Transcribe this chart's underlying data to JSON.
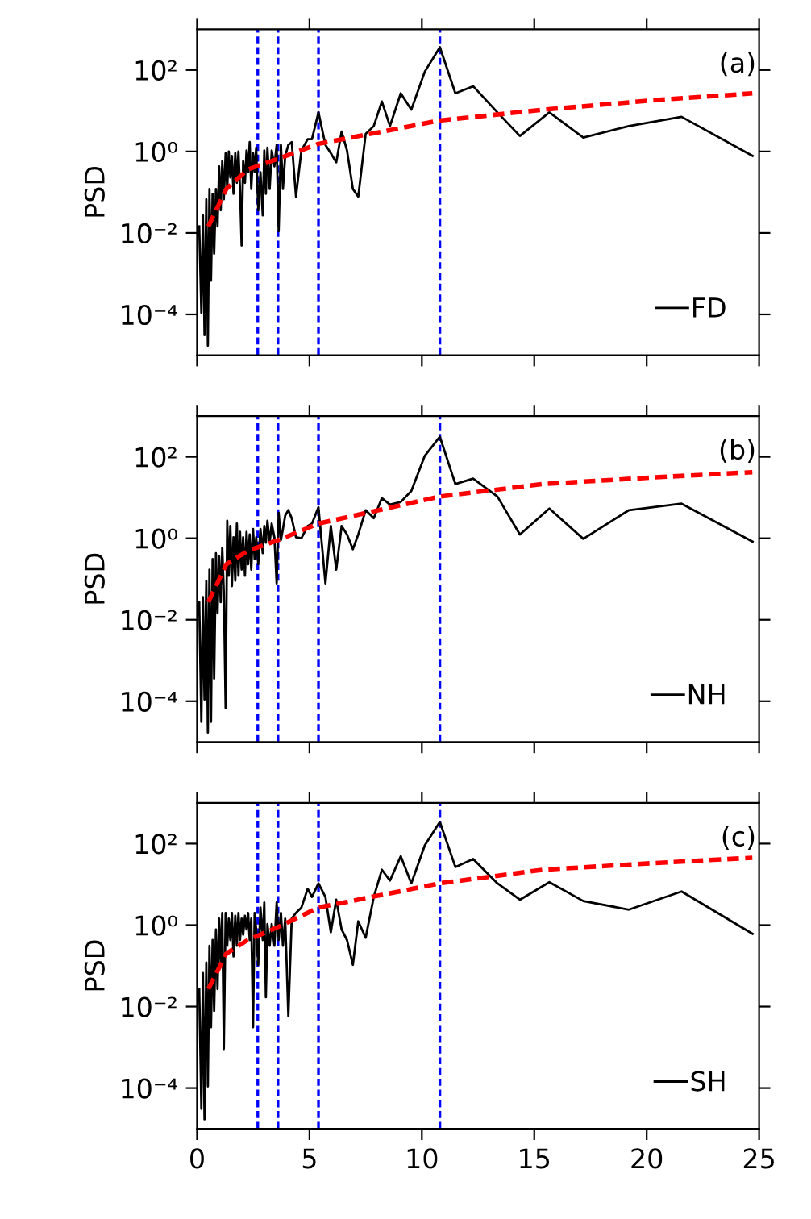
{
  "chart_data": [
    {
      "type": "line",
      "ylabel": "PSD",
      "annotations": [
        "(a)"
      ],
      "log": "y",
      "legend": "lower right",
      "grid": false,
      "tick_labels": "y",
      "marker": "none",
      "xlim": [
        0,
        25
      ],
      "xticks": [
        0,
        5,
        10,
        15,
        20,
        25
      ],
      "ylim": [
        1e-05,
        1000
      ],
      "yticks": [
        {
          "value": 0.0001,
          "label": "10⁻⁴"
        },
        {
          "value": 0.01,
          "label": "10⁻²"
        },
        {
          "value": 1,
          "label": "10⁰"
        },
        {
          "value": 100,
          "label": "10²"
        }
      ],
      "x": [
        0.096,
        0.19,
        0.26,
        0.33,
        0.41,
        0.48,
        0.55,
        0.62,
        0.69,
        0.76,
        0.84,
        0.91,
        0.98,
        1.05,
        1.12,
        1.19,
        1.27,
        1.34,
        1.41,
        1.48,
        1.55,
        1.62,
        1.7,
        1.77,
        1.84,
        1.91,
        1.98,
        2.05,
        2.13,
        2.2,
        2.27,
        2.34,
        2.41,
        2.49,
        2.56,
        2.63,
        2.72,
        2.82,
        2.92,
        2.99,
        3.06,
        3.13,
        3.23,
        3.32,
        3.44,
        3.54,
        3.63,
        3.73,
        3.82,
        3.92,
        4.06,
        4.21,
        4.4,
        4.64,
        4.92,
        5.11,
        5.4,
        5.71,
        5.95,
        6.19,
        6.43,
        6.67,
        6.93,
        7.17,
        7.5,
        7.86,
        8.22,
        8.58,
        9.06,
        9.53,
        10.13,
        10.8,
        11.49,
        12.28,
        13.36,
        14.36,
        15.67,
        17.18,
        19.21,
        21.55,
        24.71
      ],
      "series": [
        {
          "name": "FD",
          "color": "#000000",
          "line_style": "solid",
          "values": [
            0.0145,
            0.00011,
            0.027,
            3.1e-05,
            0.067,
            1.7e-05,
            0.12,
            0.00067,
            0.091,
            0.0031,
            0.12,
            0.0145,
            0.43,
            0.036,
            0.58,
            0.067,
            0.91,
            0.12,
            1.0,
            0.23,
            0.78,
            0.091,
            0.91,
            0.17,
            1.0,
            0.12,
            0.0049,
            0.58,
            0.17,
            1.06,
            0.31,
            1.7,
            0.12,
            0.91,
            0.31,
            1.24,
            0.036,
            0.31,
            0.027,
            1.06,
            0.091,
            1.24,
            0.12,
            1.06,
            0.43,
            1.45,
            0.011,
            1.45,
            0.12,
            0.78,
            1.45,
            1.7,
            0.078,
            1.06,
            2.0,
            2.0,
            9.1,
            1.45,
            0.91,
            0.54,
            3.1,
            1.06,
            0.12,
            0.078,
            2.7,
            4.2,
            16.9,
            4.2,
            26.7,
            10.6,
            91,
            363,
            26.7,
            40,
            9.1,
            2.4,
            9.1,
            2.2,
            4.2,
            7.1,
            0.78
          ]
        },
        {
          "color": "#ff0000",
          "line_style": "dashed",
          "x": [
            0.5,
            1.3,
            2.25,
            3.63,
            5.4,
            10.8,
            15.4,
            20.2,
            24.7
          ],
          "values": [
            0.0145,
            0.12,
            0.36,
            0.67,
            1.54,
            5.75,
            10.6,
            17.9,
            26.7
          ]
        }
      ],
      "ref_lines": [
        {
          "axis": "x",
          "value": 2.7,
          "color": "#0000ff",
          "line_style": "dashed"
        },
        {
          "axis": "x",
          "value": 3.6,
          "color": "#0000ff",
          "line_style": "dashed"
        },
        {
          "axis": "x",
          "value": 5.4,
          "color": "#0000ff",
          "line_style": "dashed"
        },
        {
          "axis": "x",
          "value": 10.8,
          "color": "#0000ff",
          "line_style": "dashed"
        }
      ]
    },
    {
      "type": "line",
      "ylabel": "PSD",
      "annotations": [
        "(b)"
      ],
      "log": "y",
      "legend": "lower right",
      "grid": false,
      "tick_labels": "y",
      "marker": "none",
      "xlim": [
        0,
        25
      ],
      "xticks": [
        0,
        5,
        10,
        15,
        20,
        25
      ],
      "ylim": [
        1e-05,
        1000
      ],
      "yticks": [
        {
          "value": 0.0001,
          "label": "10⁻⁴"
        },
        {
          "value": 0.01,
          "label": "10⁻²"
        },
        {
          "value": 1,
          "label": "10⁰"
        },
        {
          "value": 100,
          "label": "10²"
        }
      ],
      "x": [
        0.096,
        0.19,
        0.26,
        0.33,
        0.41,
        0.48,
        0.55,
        0.62,
        0.69,
        0.76,
        0.84,
        0.91,
        0.98,
        1.05,
        1.12,
        1.19,
        1.27,
        1.34,
        1.41,
        1.48,
        1.55,
        1.62,
        1.7,
        1.77,
        1.84,
        1.91,
        1.98,
        2.05,
        2.13,
        2.2,
        2.27,
        2.34,
        2.41,
        2.49,
        2.56,
        2.63,
        2.72,
        2.82,
        2.92,
        2.99,
        3.06,
        3.13,
        3.23,
        3.32,
        3.44,
        3.54,
        3.63,
        3.73,
        3.82,
        3.92,
        4.06,
        4.21,
        4.4,
        4.64,
        4.92,
        5.11,
        5.4,
        5.71,
        5.95,
        6.19,
        6.43,
        6.67,
        6.93,
        7.17,
        7.5,
        7.86,
        8.22,
        8.58,
        9.06,
        9.53,
        10.13,
        10.8,
        11.49,
        12.28,
        13.36,
        14.36,
        15.67,
        17.18,
        19.21,
        21.55,
        24.71
      ],
      "series": [
        {
          "name": "NH",
          "color": "#000000",
          "line_style": "solid",
          "values": [
            0.027,
            3.1e-05,
            0.036,
            0.00011,
            0.091,
            1.7e-05,
            0.17,
            3.1e-05,
            0.31,
            0.00036,
            0.43,
            0.0145,
            0.36,
            0.027,
            0.58,
            0.049,
            6.7e-05,
            2.7,
            0.12,
            2.0,
            0.067,
            1.06,
            0.091,
            2.3,
            0.12,
            1.45,
            0.17,
            1.06,
            0.12,
            1.45,
            0.23,
            1.24,
            0.17,
            1.7,
            0.31,
            1.06,
            0.23,
            1.7,
            0.43,
            2.0,
            0.78,
            2.7,
            0.78,
            2.3,
            1.06,
            0.078,
            4.2,
            0.91,
            1.7,
            3.6,
            4.9,
            3.1,
            1.06,
            1.0,
            2.0,
            2.3,
            5.8,
            0.078,
            2.0,
            0.17,
            2.0,
            1.24,
            0.54,
            1.24,
            4.9,
            3.1,
            9.7,
            6.7,
            7.8,
            14.5,
            106,
            311,
            21.5,
            29.3,
            10.6,
            1.24,
            5.4,
            0.97,
            4.9,
            7.1,
            0.83
          ]
        },
        {
          "color": "#ff0000",
          "line_style": "dashed",
          "x": [
            0.5,
            1.3,
            2.25,
            3.63,
            5.4,
            10.8,
            15.4,
            20.2,
            24.7
          ],
          "values": [
            0.027,
            0.23,
            0.49,
            0.91,
            2.3,
            10.6,
            21.5,
            31,
            42
          ]
        }
      ],
      "ref_lines": [
        {
          "axis": "x",
          "value": 2.7,
          "color": "#0000ff",
          "line_style": "dashed"
        },
        {
          "axis": "x",
          "value": 3.6,
          "color": "#0000ff",
          "line_style": "dashed"
        },
        {
          "axis": "x",
          "value": 5.4,
          "color": "#0000ff",
          "line_style": "dashed"
        },
        {
          "axis": "x",
          "value": 10.8,
          "color": "#0000ff",
          "line_style": "dashed"
        }
      ]
    },
    {
      "type": "line",
      "ylabel": "PSD",
      "annotations": [
        "(c)"
      ],
      "log": "y",
      "legend": "lower right",
      "grid": false,
      "marker": "none",
      "xlim": [
        0,
        25
      ],
      "xticks": [
        0,
        5,
        10,
        15,
        20,
        25
      ],
      "ylim": [
        1e-05,
        1000
      ],
      "yticks": [
        {
          "value": 0.0001,
          "label": "10⁻⁴"
        },
        {
          "value": 0.01,
          "label": "10⁻²"
        },
        {
          "value": 1,
          "label": "10⁰"
        },
        {
          "value": 100,
          "label": "10²"
        }
      ],
      "x": [
        0.096,
        0.19,
        0.26,
        0.33,
        0.41,
        0.48,
        0.55,
        0.62,
        0.69,
        0.76,
        0.84,
        0.91,
        0.98,
        1.05,
        1.12,
        1.19,
        1.27,
        1.34,
        1.41,
        1.48,
        1.55,
        1.62,
        1.7,
        1.77,
        1.84,
        1.91,
        1.98,
        2.05,
        2.13,
        2.2,
        2.27,
        2.34,
        2.41,
        2.49,
        2.56,
        2.63,
        2.72,
        2.82,
        2.92,
        2.99,
        3.06,
        3.13,
        3.23,
        3.32,
        3.44,
        3.54,
        3.63,
        3.73,
        3.82,
        3.92,
        4.06,
        4.21,
        4.4,
        4.64,
        4.92,
        5.11,
        5.4,
        5.71,
        5.95,
        6.19,
        6.43,
        6.67,
        6.93,
        7.17,
        7.5,
        7.86,
        8.22,
        8.58,
        9.06,
        9.53,
        10.13,
        10.8,
        11.49,
        12.28,
        13.36,
        14.36,
        15.67,
        17.18,
        19.21,
        21.55,
        24.71
      ],
      "series": [
        {
          "name": "SH",
          "color": "#000000",
          "line_style": "solid",
          "values": [
            0.027,
            3.1e-05,
            0.067,
            1.7e-05,
            0.12,
            0.00011,
            0.31,
            0.0031,
            0.43,
            0.0078,
            0.78,
            0.027,
            1.45,
            0.12,
            2.0,
            0.00091,
            2.0,
            0.31,
            1.45,
            0.43,
            2.0,
            0.17,
            1.7,
            0.31,
            2.0,
            0.43,
            1.45,
            0.58,
            1.7,
            0.78,
            2.0,
            0.43,
            1.45,
            0.0031,
            2.0,
            0.78,
            0.106,
            2.7,
            0.43,
            3.6,
            0.017,
            1.06,
            0.31,
            1.06,
            0.31,
            3.6,
            0.43,
            2.0,
            0.31,
            1.45,
            0.0058,
            1.45,
            2.0,
            2.7,
            7.8,
            4.9,
            10.6,
            4.9,
            0.67,
            4.2,
            0.78,
            0.43,
            0.106,
            1.24,
            0.49,
            4.9,
            22.9,
            12.4,
            49,
            10.6,
            91,
            341,
            26.7,
            42,
            10.6,
            4.2,
            11.3,
            3.9,
            2.4,
            6.7,
            0.61
          ]
        },
        {
          "color": "#ff0000",
          "line_style": "dashed",
          "x": [
            0.5,
            1.3,
            2.25,
            3.63,
            5.4,
            10.8,
            15.4,
            20.2,
            24.7
          ],
          "values": [
            0.027,
            0.2,
            0.43,
            0.91,
            2.7,
            10.6,
            22.9,
            33,
            45
          ]
        }
      ],
      "ref_lines": [
        {
          "axis": "x",
          "value": 2.7,
          "color": "#0000ff",
          "line_style": "dashed"
        },
        {
          "axis": "x",
          "value": 3.6,
          "color": "#0000ff",
          "line_style": "dashed"
        },
        {
          "axis": "x",
          "value": 5.4,
          "color": "#0000ff",
          "line_style": "dashed"
        },
        {
          "axis": "x",
          "value": 10.8,
          "color": "#0000ff",
          "line_style": "dashed"
        }
      ]
    }
  ]
}
